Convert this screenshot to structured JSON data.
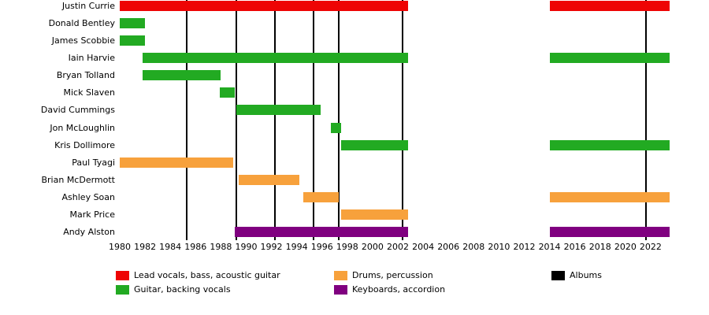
{
  "chart_data": {
    "type": "bar",
    "subtype": "gantt-band-member-timeline",
    "title": "",
    "axis": {
      "x_min": 1980,
      "x_max": 2023.5,
      "ticks": [
        1980,
        1982,
        1984,
        1986,
        1988,
        1990,
        1992,
        1994,
        1996,
        1998,
        2000,
        2002,
        2004,
        2006,
        2008,
        2010,
        2012,
        2014,
        2016,
        2018,
        2020,
        2022
      ]
    },
    "colors": {
      "vocals": "#ee0404",
      "guitar": "#22aa22",
      "drums": "#f7a13c",
      "keys": "#800080",
      "albums": "#000000"
    },
    "members": [
      {
        "name": "Justin Currie",
        "color_key": "vocals",
        "spans": [
          [
            1980,
            2002.8
          ],
          [
            2014,
            2023.5
          ]
        ]
      },
      {
        "name": "Donald Bentley",
        "color_key": "guitar",
        "spans": [
          [
            1980,
            1982
          ]
        ]
      },
      {
        "name": "James Scobbie",
        "color_key": "guitar",
        "spans": [
          [
            1980,
            1982
          ]
        ]
      },
      {
        "name": "Iain Harvie",
        "color_key": "guitar",
        "spans": [
          [
            1981.8,
            2002.8
          ],
          [
            2014,
            2023.5
          ]
        ]
      },
      {
        "name": "Bryan Tolland",
        "color_key": "guitar",
        "spans": [
          [
            1981.8,
            1988
          ]
        ]
      },
      {
        "name": "Mick Slaven",
        "color_key": "guitar",
        "spans": [
          [
            1987.9,
            1989.1
          ]
        ]
      },
      {
        "name": "David Cummings",
        "color_key": "guitar",
        "spans": [
          [
            1989.2,
            1995.9
          ]
        ]
      },
      {
        "name": "Jon McLoughlin",
        "color_key": "guitar",
        "spans": [
          [
            1996.7,
            1997.5
          ]
        ]
      },
      {
        "name": "Kris Dollimore",
        "color_key": "guitar",
        "spans": [
          [
            1997.5,
            2002.8
          ],
          [
            2014,
            2023.5
          ]
        ]
      },
      {
        "name": "Paul Tyagi",
        "color_key": "drums",
        "spans": [
          [
            1980,
            1989
          ]
        ]
      },
      {
        "name": "Brian McDermott",
        "color_key": "drums",
        "spans": [
          [
            1989.4,
            1994.2
          ]
        ]
      },
      {
        "name": "Ashley Soan",
        "color_key": "drums",
        "spans": [
          [
            1994.5,
            1997.3
          ],
          [
            2014,
            2023.5
          ]
        ]
      },
      {
        "name": "Mark Price",
        "color_key": "drums",
        "spans": [
          [
            1997.5,
            2002.8
          ]
        ]
      },
      {
        "name": "Andy Alston",
        "color_key": "keys",
        "spans": [
          [
            1989.1,
            2002.8
          ],
          [
            2014,
            2023.5
          ]
        ]
      }
    ],
    "albums": [
      1985.3,
      1989.2,
      1992.3,
      1995.3,
      1997.3,
      2002.4,
      2021.6
    ],
    "legend": [
      {
        "color": "#ee0404",
        "label": "Lead vocals, bass, acoustic guitar"
      },
      {
        "color": "#22aa22",
        "label": "Guitar, backing vocals"
      },
      {
        "color": "#f7a13c",
        "label": "Drums, percussion"
      },
      {
        "color": "#800080",
        "label": "Keyboards, accordion"
      },
      {
        "color": "#000000",
        "label": "Albums"
      }
    ]
  }
}
